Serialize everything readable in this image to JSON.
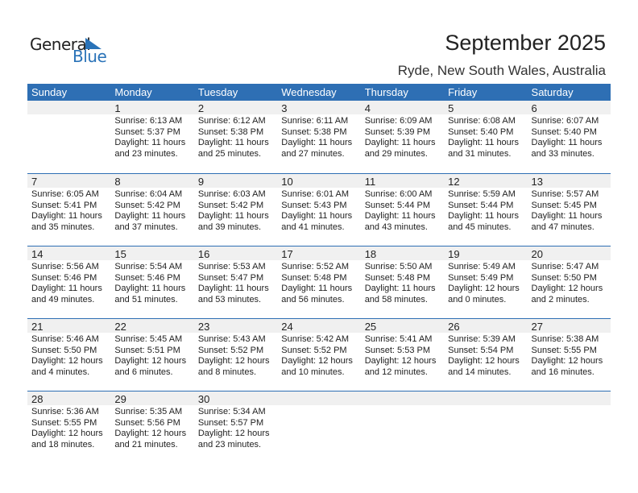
{
  "logo": {
    "line1": "General",
    "line2": "Blue"
  },
  "title": "September 2025",
  "location": "Ryde, New South Wales, Australia",
  "colors": {
    "accent": "#2e6fb4",
    "band": "#f0f0f0"
  },
  "weekdays": [
    "Sunday",
    "Monday",
    "Tuesday",
    "Wednesday",
    "Thursday",
    "Friday",
    "Saturday"
  ],
  "weeks": [
    [
      null,
      {
        "day": "1",
        "sunrise": "Sunrise: 6:13 AM",
        "sunset": "Sunset: 5:37 PM",
        "daylight1": "Daylight: 11 hours",
        "daylight2": "and 23 minutes."
      },
      {
        "day": "2",
        "sunrise": "Sunrise: 6:12 AM",
        "sunset": "Sunset: 5:38 PM",
        "daylight1": "Daylight: 11 hours",
        "daylight2": "and 25 minutes."
      },
      {
        "day": "3",
        "sunrise": "Sunrise: 6:11 AM",
        "sunset": "Sunset: 5:38 PM",
        "daylight1": "Daylight: 11 hours",
        "daylight2": "and 27 minutes."
      },
      {
        "day": "4",
        "sunrise": "Sunrise: 6:09 AM",
        "sunset": "Sunset: 5:39 PM",
        "daylight1": "Daylight: 11 hours",
        "daylight2": "and 29 minutes."
      },
      {
        "day": "5",
        "sunrise": "Sunrise: 6:08 AM",
        "sunset": "Sunset: 5:40 PM",
        "daylight1": "Daylight: 11 hours",
        "daylight2": "and 31 minutes."
      },
      {
        "day": "6",
        "sunrise": "Sunrise: 6:07 AM",
        "sunset": "Sunset: 5:40 PM",
        "daylight1": "Daylight: 11 hours",
        "daylight2": "and 33 minutes."
      }
    ],
    [
      {
        "day": "7",
        "sunrise": "Sunrise: 6:05 AM",
        "sunset": "Sunset: 5:41 PM",
        "daylight1": "Daylight: 11 hours",
        "daylight2": "and 35 minutes."
      },
      {
        "day": "8",
        "sunrise": "Sunrise: 6:04 AM",
        "sunset": "Sunset: 5:42 PM",
        "daylight1": "Daylight: 11 hours",
        "daylight2": "and 37 minutes."
      },
      {
        "day": "9",
        "sunrise": "Sunrise: 6:03 AM",
        "sunset": "Sunset: 5:42 PM",
        "daylight1": "Daylight: 11 hours",
        "daylight2": "and 39 minutes."
      },
      {
        "day": "10",
        "sunrise": "Sunrise: 6:01 AM",
        "sunset": "Sunset: 5:43 PM",
        "daylight1": "Daylight: 11 hours",
        "daylight2": "and 41 minutes."
      },
      {
        "day": "11",
        "sunrise": "Sunrise: 6:00 AM",
        "sunset": "Sunset: 5:44 PM",
        "daylight1": "Daylight: 11 hours",
        "daylight2": "and 43 minutes."
      },
      {
        "day": "12",
        "sunrise": "Sunrise: 5:59 AM",
        "sunset": "Sunset: 5:44 PM",
        "daylight1": "Daylight: 11 hours",
        "daylight2": "and 45 minutes."
      },
      {
        "day": "13",
        "sunrise": "Sunrise: 5:57 AM",
        "sunset": "Sunset: 5:45 PM",
        "daylight1": "Daylight: 11 hours",
        "daylight2": "and 47 minutes."
      }
    ],
    [
      {
        "day": "14",
        "sunrise": "Sunrise: 5:56 AM",
        "sunset": "Sunset: 5:46 PM",
        "daylight1": "Daylight: 11 hours",
        "daylight2": "and 49 minutes."
      },
      {
        "day": "15",
        "sunrise": "Sunrise: 5:54 AM",
        "sunset": "Sunset: 5:46 PM",
        "daylight1": "Daylight: 11 hours",
        "daylight2": "and 51 minutes."
      },
      {
        "day": "16",
        "sunrise": "Sunrise: 5:53 AM",
        "sunset": "Sunset: 5:47 PM",
        "daylight1": "Daylight: 11 hours",
        "daylight2": "and 53 minutes."
      },
      {
        "day": "17",
        "sunrise": "Sunrise: 5:52 AM",
        "sunset": "Sunset: 5:48 PM",
        "daylight1": "Daylight: 11 hours",
        "daylight2": "and 56 minutes."
      },
      {
        "day": "18",
        "sunrise": "Sunrise: 5:50 AM",
        "sunset": "Sunset: 5:48 PM",
        "daylight1": "Daylight: 11 hours",
        "daylight2": "and 58 minutes."
      },
      {
        "day": "19",
        "sunrise": "Sunrise: 5:49 AM",
        "sunset": "Sunset: 5:49 PM",
        "daylight1": "Daylight: 12 hours",
        "daylight2": "and 0 minutes."
      },
      {
        "day": "20",
        "sunrise": "Sunrise: 5:47 AM",
        "sunset": "Sunset: 5:50 PM",
        "daylight1": "Daylight: 12 hours",
        "daylight2": "and 2 minutes."
      }
    ],
    [
      {
        "day": "21",
        "sunrise": "Sunrise: 5:46 AM",
        "sunset": "Sunset: 5:50 PM",
        "daylight1": "Daylight: 12 hours",
        "daylight2": "and 4 minutes."
      },
      {
        "day": "22",
        "sunrise": "Sunrise: 5:45 AM",
        "sunset": "Sunset: 5:51 PM",
        "daylight1": "Daylight: 12 hours",
        "daylight2": "and 6 minutes."
      },
      {
        "day": "23",
        "sunrise": "Sunrise: 5:43 AM",
        "sunset": "Sunset: 5:52 PM",
        "daylight1": "Daylight: 12 hours",
        "daylight2": "and 8 minutes."
      },
      {
        "day": "24",
        "sunrise": "Sunrise: 5:42 AM",
        "sunset": "Sunset: 5:52 PM",
        "daylight1": "Daylight: 12 hours",
        "daylight2": "and 10 minutes."
      },
      {
        "day": "25",
        "sunrise": "Sunrise: 5:41 AM",
        "sunset": "Sunset: 5:53 PM",
        "daylight1": "Daylight: 12 hours",
        "daylight2": "and 12 minutes."
      },
      {
        "day": "26",
        "sunrise": "Sunrise: 5:39 AM",
        "sunset": "Sunset: 5:54 PM",
        "daylight1": "Daylight: 12 hours",
        "daylight2": "and 14 minutes."
      },
      {
        "day": "27",
        "sunrise": "Sunrise: 5:38 AM",
        "sunset": "Sunset: 5:55 PM",
        "daylight1": "Daylight: 12 hours",
        "daylight2": "and 16 minutes."
      }
    ],
    [
      {
        "day": "28",
        "sunrise": "Sunrise: 5:36 AM",
        "sunset": "Sunset: 5:55 PM",
        "daylight1": "Daylight: 12 hours",
        "daylight2": "and 18 minutes."
      },
      {
        "day": "29",
        "sunrise": "Sunrise: 5:35 AM",
        "sunset": "Sunset: 5:56 PM",
        "daylight1": "Daylight: 12 hours",
        "daylight2": "and 21 minutes."
      },
      {
        "day": "30",
        "sunrise": "Sunrise: 5:34 AM",
        "sunset": "Sunset: 5:57 PM",
        "daylight1": "Daylight: 12 hours",
        "daylight2": "and 23 minutes."
      },
      null,
      null,
      null,
      null
    ]
  ]
}
